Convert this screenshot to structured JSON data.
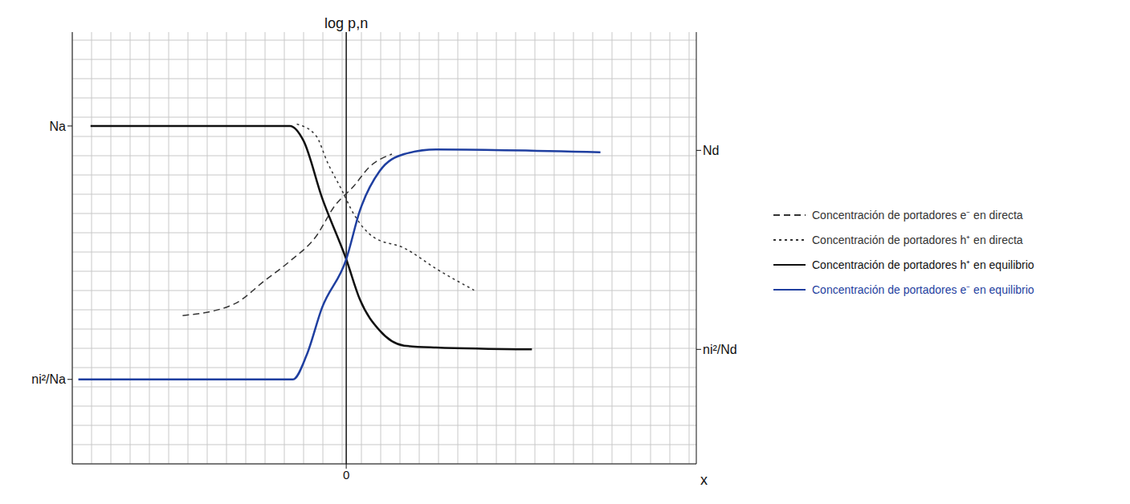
{
  "chart_data": {
    "type": "line",
    "x_label": "x",
    "y_label": "log p,n",
    "xlim": [
      -18,
      23
    ],
    "xticks": [
      0
    ],
    "ylim": [
      0,
      23
    ],
    "yticks": [
      {
        "value": 4.5,
        "label": "ni²/Na"
      },
      {
        "value": 18,
        "label": "Na"
      }
    ],
    "y2lim": [
      0,
      23
    ],
    "y2ticks": [
      {
        "value": 6.1,
        "label": "ni²/Nd"
      },
      {
        "value": 16.7,
        "label": "Nd"
      }
    ],
    "grid": true,
    "legend": "right",
    "series": [
      {
        "name": "Concentración de portadores e⁻ en directa",
        "color": "#333333",
        "line_style": "dashed",
        "x": [
          -10.75,
          -7.4,
          -5.3,
          -3.7,
          -2,
          -0.75,
          0.5,
          1.5,
          3
        ],
        "values": [
          7.9,
          8.5,
          9.8,
          10.8,
          12.1,
          13.75,
          14.8,
          15.8,
          16.5
        ]
      },
      {
        "name": "Concentración de portadores h⁺ en directa",
        "color": "#333333",
        "line_style": "dotted",
        "x": [
          -3.25,
          -2,
          -1.2,
          -0.3,
          0.5,
          1.75,
          3.8,
          5.9,
          8.4
        ],
        "values": [
          18.1,
          17.5,
          16,
          14.6,
          13.3,
          12.1,
          11.5,
          10.4,
          9.25
        ]
      },
      {
        "name": "Concentración de portadores h⁺ en equilibrio",
        "color": "#111111",
        "line_style": "solid",
        "x": [
          -16.8,
          -3.7,
          -2.8,
          -1.6,
          0,
          0.9,
          2.2,
          3.8,
          5.9,
          12.2
        ],
        "values": [
          18,
          18,
          17.2,
          14.2,
          10.9,
          8.75,
          7.1,
          6.3,
          6.2,
          6.1
        ]
      },
      {
        "name": "Concentración de portadores e⁻ en equilibrio",
        "color": "#1f3fa0",
        "line_style": "solid",
        "x": [
          -17.6,
          -3.5,
          -2.6,
          -1.6,
          0,
          0.9,
          2.2,
          3.8,
          5.9,
          16.7
        ],
        "values": [
          4.5,
          4.5,
          5.8,
          8.3,
          10.9,
          13.5,
          15.6,
          16.5,
          16.75,
          16.6
        ]
      }
    ]
  }
}
